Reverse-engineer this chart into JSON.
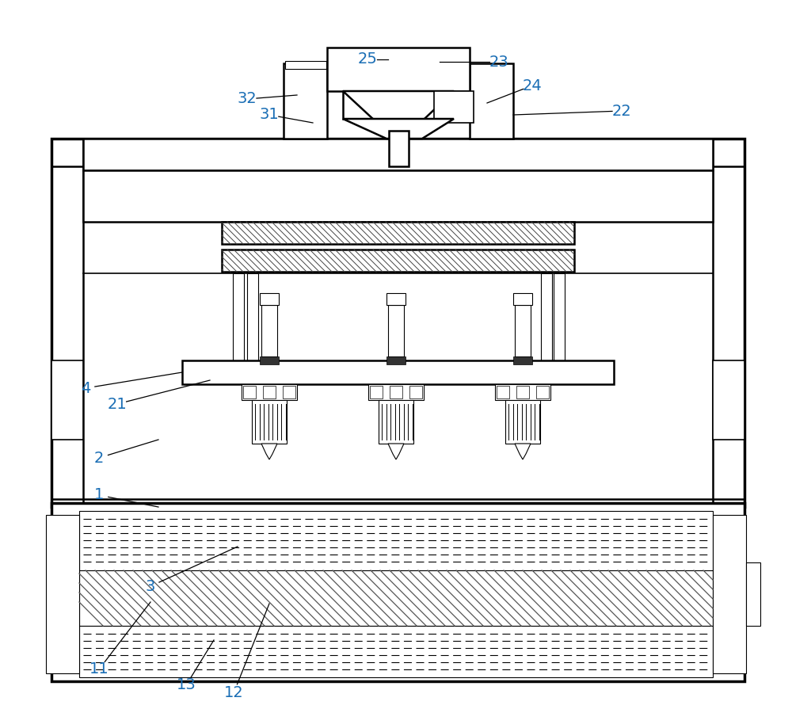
{
  "bg_color": "#ffffff",
  "line_color": "#000000",
  "label_color": "#1a6eb5",
  "fig_width": 10.0,
  "fig_height": 9.19
}
